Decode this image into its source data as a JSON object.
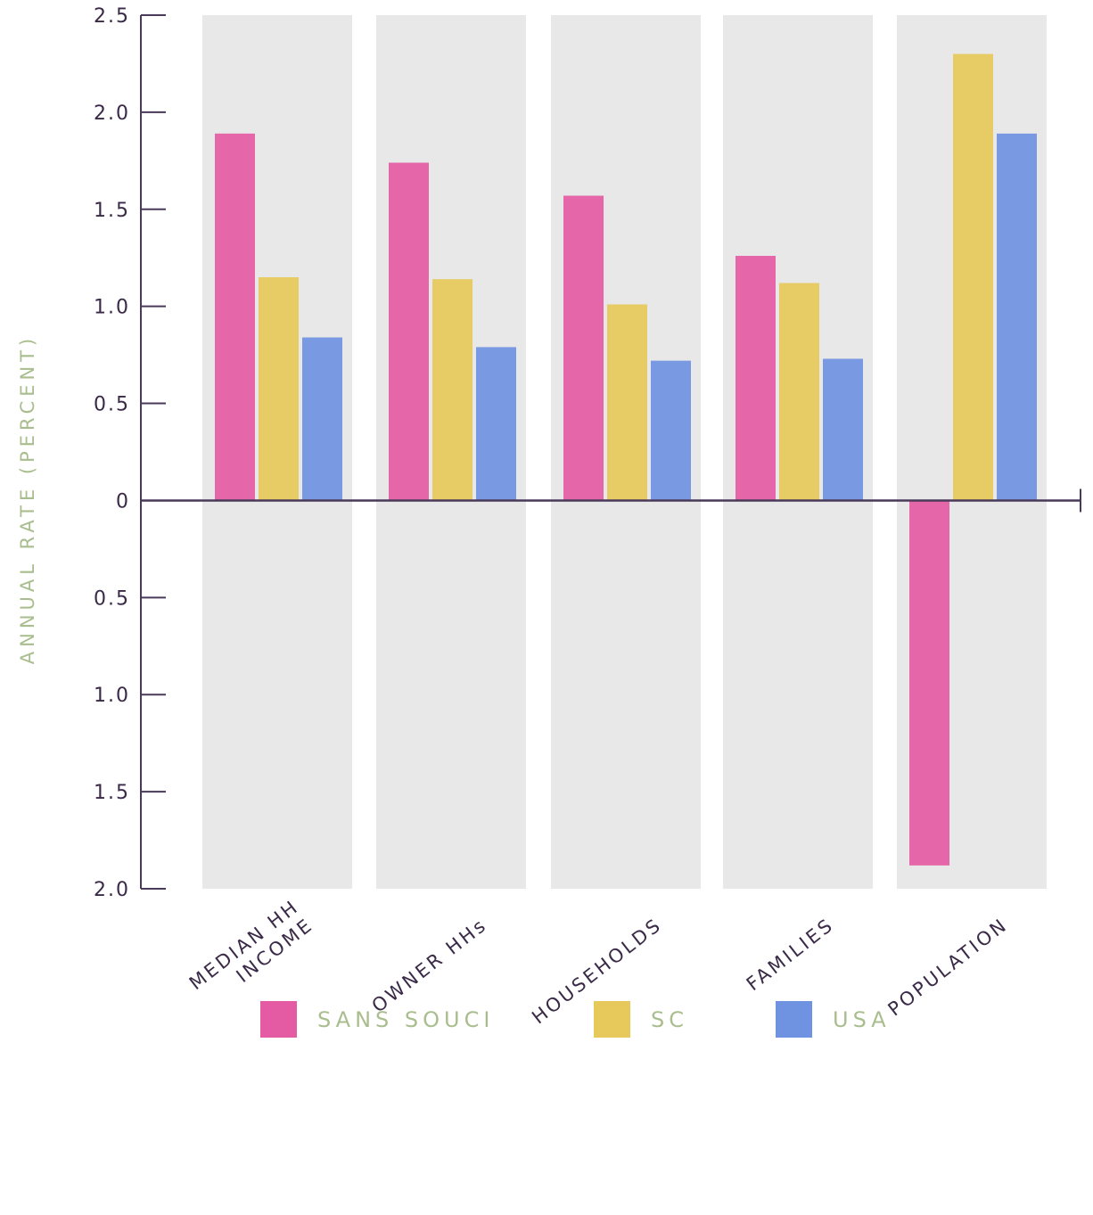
{
  "chart_data": {
    "type": "bar",
    "title": "",
    "xlabel": "",
    "ylabel": "ANNUAL RATE (PERCENT)",
    "categories": [
      [
        "MEDIAN HH",
        "INCOME"
      ],
      [
        "OWNER HHs"
      ],
      [
        "HOUSEHOLDS"
      ],
      [
        "FAMILIES"
      ],
      [
        "POPULATION"
      ]
    ],
    "series": [
      {
        "name": "SANS SOUCI",
        "color": "#e45aa3",
        "values": [
          1.89,
          1.74,
          1.57,
          1.26,
          -1.88
        ]
      },
      {
        "name": "SC",
        "color": "#e6c95a",
        "values": [
          1.15,
          1.14,
          1.01,
          1.12,
          2.3
        ]
      },
      {
        "name": "USA",
        "color": "#6f93e1",
        "values": [
          0.84,
          0.79,
          0.72,
          0.73,
          1.89
        ]
      }
    ],
    "yticks": [
      {
        "value": 2.5,
        "label": "2.5"
      },
      {
        "value": 2.0,
        "label": "2.0"
      },
      {
        "value": 1.5,
        "label": "1.5"
      },
      {
        "value": 1.0,
        "label": "1.0"
      },
      {
        "value": 0.5,
        "label": "0.5"
      },
      {
        "value": 0,
        "label": "0"
      },
      {
        "value": -0.5,
        "label": "0.5"
      },
      {
        "value": -1.0,
        "label": "1.0"
      },
      {
        "value": -1.5,
        "label": "1.5"
      },
      {
        "value": -2.0,
        "label": "2.0"
      }
    ],
    "ylim": [
      -2.0,
      2.5
    ],
    "grid": false,
    "legend_position": "bottom",
    "colors": {
      "axis": "#4a3a5a",
      "panel": "#e8e8e8",
      "label": "#3a2a48",
      "legend_text": "#a9bd8e"
    }
  }
}
